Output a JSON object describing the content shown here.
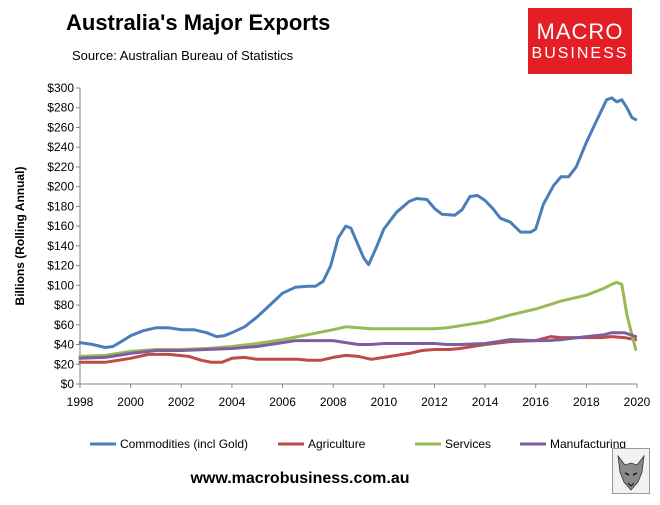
{
  "header": {
    "title": "Australia's Major Exports",
    "source": "Source:  Australian Bureau of Statistics"
  },
  "logo": {
    "line1": "MACRO",
    "line2": "BUSINESS"
  },
  "footer": {
    "url": "www.macrobusiness.com.au"
  },
  "chart_data": {
    "type": "line",
    "title": "Australia's Major Exports",
    "ylabel": "Billions (Rolling Annual)",
    "xlabel": "",
    "xlim": [
      1998,
      2020
    ],
    "ylim": [
      0,
      300
    ],
    "x_ticks": [
      1998,
      2000,
      2002,
      2004,
      2006,
      2008,
      2010,
      2012,
      2014,
      2016,
      2018,
      2020
    ],
    "x_tick_labels": [
      "1998",
      "2000",
      "2002",
      "2004",
      "2006",
      "2008",
      "2010",
      "2012",
      "2014",
      "2016",
      "2018",
      "2020"
    ],
    "y_ticks": [
      0,
      20,
      40,
      60,
      80,
      100,
      120,
      140,
      160,
      180,
      200,
      220,
      240,
      260,
      280,
      300
    ],
    "y_tick_labels": [
      "$0",
      "$20",
      "$40",
      "$60",
      "$80",
      "$100",
      "$120",
      "$140",
      "$160",
      "$180",
      "$200",
      "$220",
      "$240",
      "$260",
      "$280",
      "$300"
    ],
    "grid": false,
    "legend": "bottom",
    "series": [
      {
        "name": "Commodities (incl Gold)",
        "color": "#4a7ebb",
        "points": [
          [
            1998,
            42
          ],
          [
            1998.5,
            40
          ],
          [
            1999,
            37
          ],
          [
            1999.3,
            38
          ],
          [
            1999.7,
            44
          ],
          [
            2000,
            49
          ],
          [
            2000.5,
            54
          ],
          [
            2001,
            57
          ],
          [
            2001.5,
            57
          ],
          [
            2002,
            55
          ],
          [
            2002.5,
            55
          ],
          [
            2003,
            52
          ],
          [
            2003.4,
            48
          ],
          [
            2003.7,
            49
          ],
          [
            2004,
            52
          ],
          [
            2004.5,
            58
          ],
          [
            2005,
            68
          ],
          [
            2005.5,
            80
          ],
          [
            2006,
            92
          ],
          [
            2006.5,
            98
          ],
          [
            2007,
            99
          ],
          [
            2007.3,
            99
          ],
          [
            2007.6,
            104
          ],
          [
            2007.9,
            120
          ],
          [
            2008.2,
            148
          ],
          [
            2008.5,
            160
          ],
          [
            2008.7,
            158
          ],
          [
            2009,
            140
          ],
          [
            2009.2,
            128
          ],
          [
            2009.4,
            121
          ],
          [
            2009.7,
            138
          ],
          [
            2010,
            157
          ],
          [
            2010.5,
            174
          ],
          [
            2011,
            185
          ],
          [
            2011.3,
            188
          ],
          [
            2011.7,
            187
          ],
          [
            2012,
            178
          ],
          [
            2012.3,
            172
          ],
          [
            2012.8,
            171
          ],
          [
            2013.1,
            177
          ],
          [
            2013.4,
            190
          ],
          [
            2013.7,
            191
          ],
          [
            2014,
            186
          ],
          [
            2014.3,
            178
          ],
          [
            2014.6,
            168
          ],
          [
            2015,
            164
          ],
          [
            2015.4,
            154
          ],
          [
            2015.8,
            154
          ],
          [
            2016,
            157
          ],
          [
            2016.3,
            182
          ],
          [
            2016.7,
            201
          ],
          [
            2017,
            210
          ],
          [
            2017.3,
            210
          ],
          [
            2017.6,
            220
          ],
          [
            2018,
            245
          ],
          [
            2018.5,
            272
          ],
          [
            2018.8,
            288
          ],
          [
            2019,
            290
          ],
          [
            2019.2,
            286
          ],
          [
            2019.4,
            288
          ],
          [
            2019.6,
            280
          ],
          [
            2019.8,
            270
          ],
          [
            2019.95,
            268
          ]
        ]
      },
      {
        "name": "Agriculture",
        "color": "#be4b48",
        "points": [
          [
            1998,
            22
          ],
          [
            1999,
            22
          ],
          [
            2000,
            26
          ],
          [
            2000.7,
            30
          ],
          [
            2001.5,
            30
          ],
          [
            2002.3,
            28
          ],
          [
            2002.8,
            24
          ],
          [
            2003.2,
            22
          ],
          [
            2003.6,
            22
          ],
          [
            2004,
            26
          ],
          [
            2004.5,
            27
          ],
          [
            2005,
            25
          ],
          [
            2006,
            25
          ],
          [
            2006.6,
            25
          ],
          [
            2007,
            24
          ],
          [
            2007.5,
            24
          ],
          [
            2008,
            27
          ],
          [
            2008.5,
            29
          ],
          [
            2009,
            28
          ],
          [
            2009.5,
            25
          ],
          [
            2010,
            27
          ],
          [
            2011,
            31
          ],
          [
            2011.5,
            34
          ],
          [
            2012,
            35
          ],
          [
            2012.6,
            35
          ],
          [
            2013,
            36
          ],
          [
            2014,
            40
          ],
          [
            2015,
            43
          ],
          [
            2016,
            44
          ],
          [
            2016.6,
            48
          ],
          [
            2017,
            47
          ],
          [
            2018,
            47
          ],
          [
            2018.6,
            47
          ],
          [
            2019,
            48
          ],
          [
            2019.5,
            47
          ],
          [
            2019.95,
            45
          ]
        ]
      },
      {
        "name": "Services",
        "color": "#98b954",
        "points": [
          [
            1998,
            28
          ],
          [
            1999,
            29
          ],
          [
            2000,
            33
          ],
          [
            2001,
            35
          ],
          [
            2002,
            35
          ],
          [
            2003,
            36
          ],
          [
            2004,
            38
          ],
          [
            2005,
            41
          ],
          [
            2006,
            45
          ],
          [
            2007,
            50
          ],
          [
            2008,
            55
          ],
          [
            2008.5,
            58
          ],
          [
            2009,
            57
          ],
          [
            2009.5,
            56
          ],
          [
            2010,
            56
          ],
          [
            2011,
            56
          ],
          [
            2012,
            56
          ],
          [
            2012.5,
            57
          ],
          [
            2013,
            59
          ],
          [
            2014,
            63
          ],
          [
            2015,
            70
          ],
          [
            2016,
            76
          ],
          [
            2016.5,
            80
          ],
          [
            2017,
            84
          ],
          [
            2018,
            90
          ],
          [
            2018.7,
            97
          ],
          [
            2019,
            101
          ],
          [
            2019.2,
            103
          ],
          [
            2019.4,
            101
          ],
          [
            2019.6,
            70
          ],
          [
            2019.8,
            50
          ],
          [
            2019.95,
            35
          ]
        ]
      },
      {
        "name": "Manufacturing",
        "color": "#7d5fa0",
        "points": [
          [
            1998,
            26
          ],
          [
            1999,
            27
          ],
          [
            2000,
            31
          ],
          [
            2001,
            34
          ],
          [
            2002,
            34
          ],
          [
            2003,
            35
          ],
          [
            2004,
            36
          ],
          [
            2005,
            38
          ],
          [
            2006,
            42
          ],
          [
            2006.5,
            44
          ],
          [
            2007,
            44
          ],
          [
            2008,
            44
          ],
          [
            2008.5,
            42
          ],
          [
            2009,
            40
          ],
          [
            2009.5,
            40
          ],
          [
            2010,
            41
          ],
          [
            2011,
            41
          ],
          [
            2012,
            41
          ],
          [
            2012.5,
            40
          ],
          [
            2013,
            40
          ],
          [
            2014,
            41
          ],
          [
            2014.5,
            43
          ],
          [
            2015,
            45
          ],
          [
            2016,
            44
          ],
          [
            2016.5,
            44
          ],
          [
            2017,
            45
          ],
          [
            2018,
            48
          ],
          [
            2018.7,
            50
          ],
          [
            2019,
            52
          ],
          [
            2019.5,
            52
          ],
          [
            2019.95,
            48
          ]
        ]
      }
    ]
  }
}
